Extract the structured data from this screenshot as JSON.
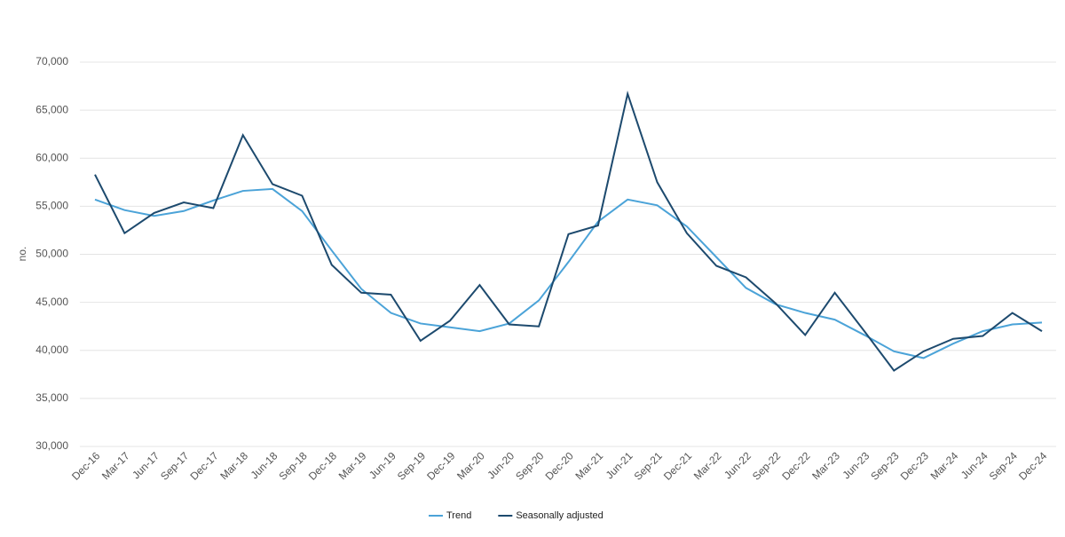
{
  "chart_data": {
    "type": "line",
    "y_label": "no.",
    "categories": [
      "Dec-16",
      "Mar-17",
      "Jun-17",
      "Sep-17",
      "Dec-17",
      "Mar-18",
      "Jun-18",
      "Sep-18",
      "Dec-18",
      "Mar-19",
      "Jun-19",
      "Sep-19",
      "Dec-19",
      "Mar-20",
      "Jun-20",
      "Sep-20",
      "Dec-20",
      "Mar-21",
      "Jun-21",
      "Sep-21",
      "Dec-21",
      "Mar-22",
      "Jun-22",
      "Sep-22",
      "Dec-22",
      "Mar-23",
      "Jun-23",
      "Sep-23",
      "Dec-23",
      "Mar-24",
      "Jun-24",
      "Sep-24",
      "Dec-24"
    ],
    "series": [
      {
        "name": "Trend",
        "color": "#4ba3d8",
        "values": [
          55700,
          54600,
          54000,
          54500,
          55600,
          56600,
          56800,
          54500,
          50400,
          46400,
          43900,
          42800,
          42400,
          42000,
          42800,
          45200,
          49200,
          53400,
          55700,
          55100,
          52900,
          49700,
          46500,
          44800,
          43900,
          43200,
          41600,
          39900,
          39200,
          40700,
          42000,
          42700,
          42900
        ]
      },
      {
        "name": "Seasonally adjusted",
        "color": "#1d4a6e",
        "values": [
          58300,
          52200,
          54300,
          55400,
          54800,
          62400,
          57300,
          56100,
          48900,
          46000,
          45800,
          41000,
          43100,
          46800,
          42700,
          42500,
          52100,
          53000,
          66700,
          57500,
          52200,
          48800,
          47600,
          44900,
          41600,
          46000,
          42000,
          37900,
          39900,
          41200,
          41500,
          43900,
          42000
        ]
      }
    ],
    "ylim": [
      30000,
      70000
    ],
    "yticks": [
      {
        "value": 30000,
        "label": "30,000"
      },
      {
        "value": 35000,
        "label": "35,000"
      },
      {
        "value": 40000,
        "label": "40,000"
      },
      {
        "value": 45000,
        "label": "45,000"
      },
      {
        "value": 50000,
        "label": "50,000"
      },
      {
        "value": 55000,
        "label": "55,000"
      },
      {
        "value": 60000,
        "label": "60,000"
      },
      {
        "value": 65000,
        "label": "65,000"
      },
      {
        "value": 70000,
        "label": "70,000"
      }
    ],
    "grid": true,
    "legend": "bottom"
  }
}
